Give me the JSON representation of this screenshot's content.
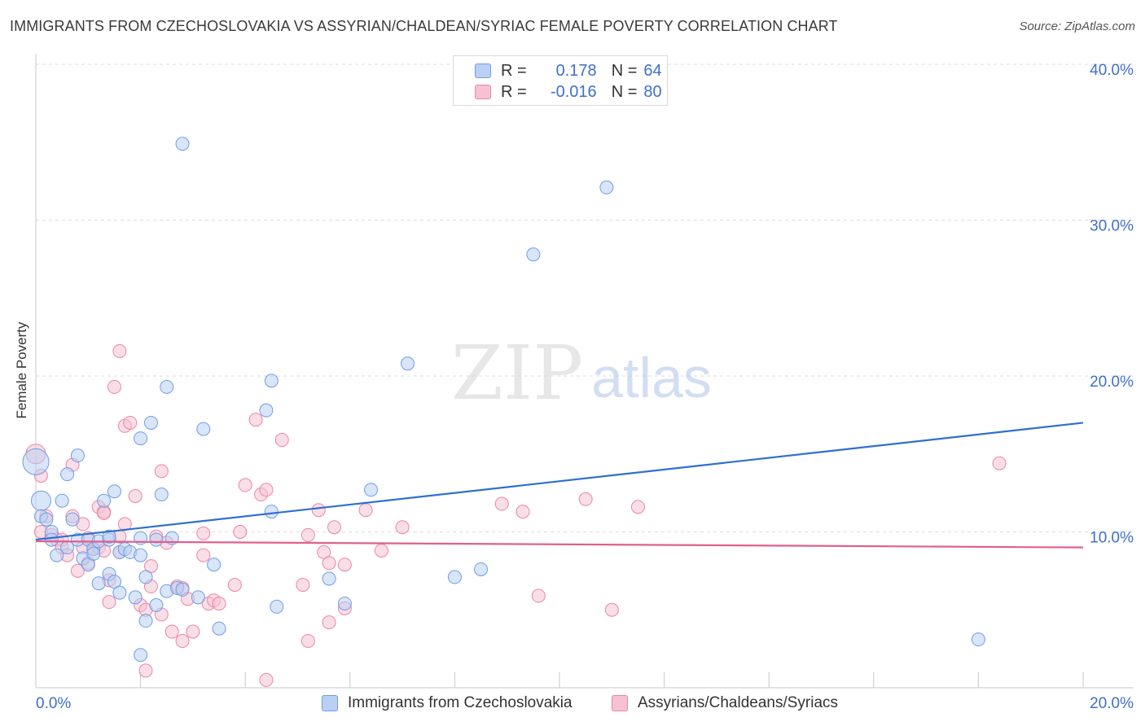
{
  "title": "IMMIGRANTS FROM CZECHOSLOVAKIA VS ASSYRIAN/CHALDEAN/SYRIAC FEMALE POVERTY CORRELATION CHART",
  "source": "Source: ZipAtlas.com",
  "watermark": {
    "zip": "ZIP",
    "atlas": "atlas"
  },
  "colors": {
    "blue": "#6f9de6",
    "blue_fill": "#b9d0f3",
    "blue_line": "#2f6fd0",
    "pink": "#ea86a6",
    "pink_fill": "#f6c2d3",
    "pink_line": "#e0608d",
    "tick_label": "#3f6fca",
    "grid": "#dedede"
  },
  "legend": {
    "rows": [
      {
        "r_label": "R =",
        "r_value": "0.178",
        "n_label": "N =",
        "n_value": "64"
      },
      {
        "r_label": "R =",
        "r_value": "-0.016",
        "n_label": "N =",
        "n_value": "80"
      }
    ]
  },
  "bottom_legend": {
    "items": [
      "Immigrants from Czechoslovakia",
      "Assyrians/Chaldeans/Syriacs"
    ]
  },
  "chart_data": {
    "type": "scatter",
    "title": "IMMIGRANTS FROM CZECHOSLOVAKIA VS ASSYRIAN/CHALDEAN/SYRIAC FEMALE POVERTY CORRELATION CHART",
    "xlabel": "",
    "ylabel": "Female Poverty",
    "xlim": [
      0,
      20
    ],
    "ylim": [
      0,
      40
    ],
    "x_tick_labels": [
      "0.0%",
      "20.0%"
    ],
    "y_ticks": [
      10,
      20,
      30,
      40
    ],
    "y_tick_labels": [
      "10.0%",
      "20.0%",
      "30.0%",
      "40.0%"
    ],
    "grid": true,
    "legend_position": "top-center",
    "series": [
      {
        "name": "Immigrants from Czechoslovakia",
        "stats": {
          "R": 0.178,
          "N": 64
        },
        "trend": {
          "x": [
            0,
            20
          ],
          "y": [
            9.5,
            17.0
          ]
        },
        "points": [
          [
            0.0,
            14.5,
            2
          ],
          [
            0.1,
            12.0,
            1.5
          ],
          [
            0.1,
            11.0,
            1
          ],
          [
            0.2,
            10.8,
            1
          ],
          [
            0.3,
            10.0,
            1
          ],
          [
            0.3,
            9.5,
            1
          ],
          [
            0.4,
            8.5,
            1
          ],
          [
            0.5,
            12.0,
            1
          ],
          [
            0.6,
            13.7,
            1
          ],
          [
            0.6,
            9.0,
            1
          ],
          [
            0.7,
            10.8,
            1
          ],
          [
            0.8,
            9.5,
            1
          ],
          [
            0.8,
            14.9,
            1
          ],
          [
            0.9,
            8.3,
            1
          ],
          [
            1.0,
            9.5,
            1
          ],
          [
            1.0,
            7.9,
            1
          ],
          [
            1.1,
            8.9,
            1
          ],
          [
            1.1,
            8.6,
            1
          ],
          [
            1.2,
            9.4,
            1
          ],
          [
            1.2,
            6.7,
            1
          ],
          [
            1.3,
            12.0,
            1
          ],
          [
            1.4,
            9.5,
            1
          ],
          [
            1.4,
            7.3,
            1
          ],
          [
            1.4,
            9.7,
            1
          ],
          [
            1.5,
            12.6,
            1
          ],
          [
            1.5,
            6.8,
            1
          ],
          [
            1.6,
            6.1,
            1
          ],
          [
            1.6,
            8.7,
            1
          ],
          [
            1.7,
            8.9,
            1
          ],
          [
            1.8,
            8.7,
            1
          ],
          [
            1.9,
            5.8,
            1
          ],
          [
            2.0,
            8.5,
            1
          ],
          [
            2.0,
            9.6,
            1
          ],
          [
            2.1,
            7.1,
            1
          ],
          [
            2.0,
            16.0,
            1
          ],
          [
            2.0,
            2.1,
            1
          ],
          [
            2.1,
            4.3,
            1
          ],
          [
            2.2,
            17.0,
            1
          ],
          [
            2.3,
            9.5,
            1
          ],
          [
            2.3,
            5.3,
            1
          ],
          [
            2.4,
            12.4,
            1
          ],
          [
            2.5,
            19.3,
            1
          ],
          [
            2.5,
            6.2,
            1
          ],
          [
            2.6,
            9.6,
            1
          ],
          [
            2.7,
            6.4,
            1
          ],
          [
            2.8,
            6.3,
            1
          ],
          [
            2.8,
            34.9,
            1
          ],
          [
            3.1,
            5.8,
            1
          ],
          [
            3.2,
            16.6,
            1
          ],
          [
            3.4,
            7.9,
            1
          ],
          [
            3.5,
            3.8,
            1
          ],
          [
            4.5,
            19.7,
            1
          ],
          [
            4.5,
            11.3,
            1
          ],
          [
            4.4,
            17.8,
            1
          ],
          [
            4.6,
            5.2,
            1
          ],
          [
            5.6,
            7.0,
            1
          ],
          [
            5.9,
            5.4,
            1
          ],
          [
            6.4,
            12.7,
            1
          ],
          [
            7.1,
            20.8,
            1
          ],
          [
            8.0,
            7.1,
            1
          ],
          [
            8.5,
            7.6,
            1
          ],
          [
            9.5,
            27.8,
            1
          ],
          [
            10.9,
            32.1,
            1
          ],
          [
            18.0,
            3.1,
            1
          ]
        ]
      },
      {
        "name": "Assyrians/Chaldeans/Syriacs",
        "stats": {
          "R": -0.016,
          "N": 80
        },
        "trend": {
          "x": [
            0,
            20
          ],
          "y": [
            9.4,
            9.0
          ]
        },
        "points": [
          [
            0.0,
            15.0,
            1.5
          ],
          [
            0.1,
            13.6,
            1
          ],
          [
            0.1,
            10.0,
            1
          ],
          [
            0.2,
            11.0,
            1
          ],
          [
            0.3,
            9.8,
            1
          ],
          [
            0.4,
            9.5,
            1
          ],
          [
            0.5,
            9.5,
            1
          ],
          [
            0.5,
            9.0,
            1
          ],
          [
            0.6,
            8.5,
            1
          ],
          [
            0.7,
            14.3,
            1
          ],
          [
            0.7,
            11.0,
            1
          ],
          [
            0.8,
            7.5,
            1
          ],
          [
            0.9,
            9.0,
            1
          ],
          [
            0.9,
            10.5,
            1
          ],
          [
            1.0,
            8.0,
            1
          ],
          [
            1.0,
            9.6,
            1
          ],
          [
            1.1,
            8.9,
            1
          ],
          [
            1.2,
            9.0,
            1
          ],
          [
            1.2,
            11.6,
            1
          ],
          [
            1.3,
            11.3,
            1
          ],
          [
            1.3,
            11.2,
            1
          ],
          [
            1.3,
            8.8,
            1
          ],
          [
            1.4,
            5.5,
            1
          ],
          [
            1.4,
            6.9,
            1
          ],
          [
            1.5,
            19.3,
            1
          ],
          [
            1.6,
            8.7,
            1
          ],
          [
            1.6,
            9.7,
            1
          ],
          [
            1.6,
            21.6,
            1
          ],
          [
            1.7,
            10.5,
            1
          ],
          [
            1.7,
            16.8,
            1
          ],
          [
            1.8,
            17.0,
            1
          ],
          [
            1.9,
            12.3,
            1
          ],
          [
            2.0,
            5.3,
            1
          ],
          [
            2.1,
            5.0,
            1
          ],
          [
            2.1,
            1.1,
            1
          ],
          [
            2.2,
            7.8,
            1
          ],
          [
            2.2,
            6.5,
            1
          ],
          [
            2.3,
            9.7,
            1
          ],
          [
            2.4,
            4.7,
            1
          ],
          [
            2.4,
            13.9,
            1
          ],
          [
            2.5,
            9.3,
            1
          ],
          [
            2.6,
            3.6,
            1
          ],
          [
            2.7,
            6.5,
            1
          ],
          [
            2.8,
            3.0,
            1
          ],
          [
            2.8,
            6.4,
            1
          ],
          [
            2.9,
            5.7,
            1
          ],
          [
            3.0,
            3.6,
            1
          ],
          [
            3.2,
            8.5,
            1
          ],
          [
            3.2,
            9.9,
            1
          ],
          [
            3.3,
            5.4,
            1
          ],
          [
            3.4,
            5.6,
            1
          ],
          [
            3.5,
            5.4,
            1
          ],
          [
            3.8,
            6.6,
            1
          ],
          [
            3.9,
            10.0,
            1
          ],
          [
            4.0,
            13.0,
            1
          ],
          [
            4.2,
            17.2,
            1
          ],
          [
            4.3,
            12.4,
            1
          ],
          [
            4.4,
            12.7,
            1
          ],
          [
            4.4,
            0.5,
            1
          ],
          [
            4.7,
            15.9,
            1
          ],
          [
            5.1,
            6.6,
            1
          ],
          [
            5.2,
            3.0,
            1
          ],
          [
            5.2,
            9.8,
            1
          ],
          [
            5.4,
            11.4,
            1
          ],
          [
            5.5,
            8.7,
            1
          ],
          [
            5.6,
            4.2,
            1
          ],
          [
            5.6,
            8.0,
            1
          ],
          [
            5.7,
            10.3,
            1
          ],
          [
            5.9,
            5.1,
            1
          ],
          [
            5.9,
            7.9,
            1
          ],
          [
            6.3,
            11.4,
            1
          ],
          [
            6.6,
            8.8,
            1
          ],
          [
            7.0,
            10.3,
            1
          ],
          [
            8.9,
            11.8,
            1
          ],
          [
            9.3,
            11.3,
            1
          ],
          [
            9.6,
            5.9,
            1
          ],
          [
            10.5,
            12.1,
            1
          ],
          [
            11.0,
            5.0,
            1
          ],
          [
            11.5,
            11.6,
            1
          ],
          [
            18.4,
            14.4,
            1
          ]
        ]
      }
    ]
  }
}
